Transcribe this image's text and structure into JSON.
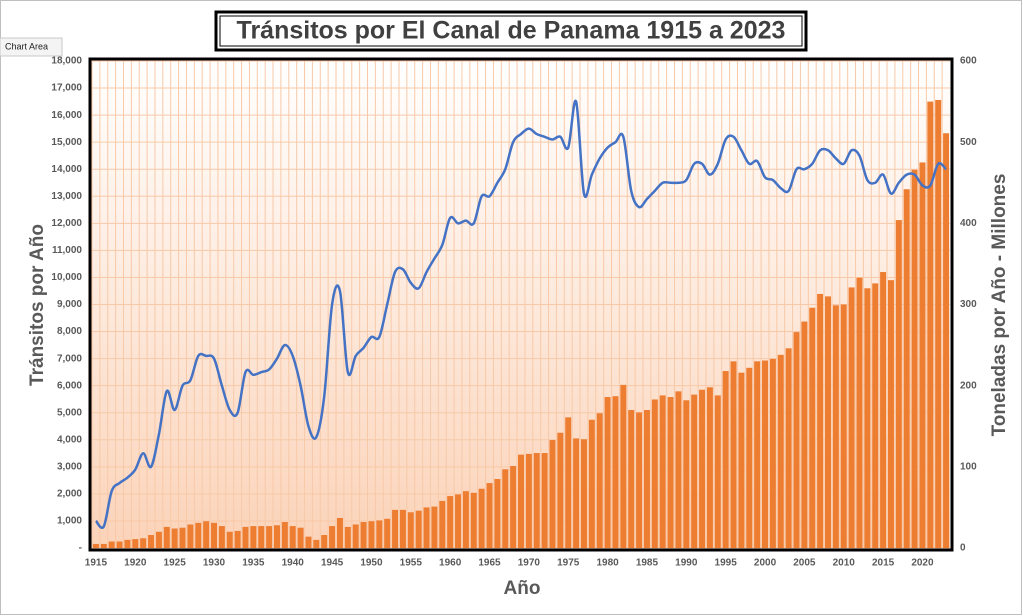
{
  "tooltip": "Chart Area",
  "chart_data": {
    "type": "combo",
    "title": "Tránsitos por El Canal de Panama 1915 a 2023",
    "x_label": "Año",
    "y_label": "Tránsitos por Año",
    "y2_label": "Toneladas por Año  - Millones",
    "x": [
      1915,
      1916,
      1917,
      1918,
      1919,
      1920,
      1921,
      1922,
      1923,
      1924,
      1925,
      1926,
      1927,
      1928,
      1929,
      1930,
      1931,
      1932,
      1933,
      1934,
      1935,
      1936,
      1937,
      1938,
      1939,
      1940,
      1941,
      1942,
      1943,
      1944,
      1945,
      1946,
      1947,
      1948,
      1949,
      1950,
      1951,
      1952,
      1953,
      1954,
      1955,
      1956,
      1957,
      1958,
      1959,
      1960,
      1961,
      1962,
      1963,
      1964,
      1965,
      1966,
      1967,
      1968,
      1969,
      1970,
      1971,
      1972,
      1973,
      1974,
      1975,
      1976,
      1977,
      1978,
      1979,
      1980,
      1981,
      1982,
      1983,
      1984,
      1985,
      1986,
      1987,
      1988,
      1989,
      1990,
      1991,
      1992,
      1993,
      1994,
      1995,
      1996,
      1997,
      1998,
      1999,
      2000,
      2001,
      2002,
      2003,
      2004,
      2005,
      2006,
      2007,
      2008,
      2009,
      2010,
      2011,
      2012,
      2013,
      2014,
      2015,
      2016,
      2017,
      2018,
      2019,
      2020,
      2021,
      2022,
      2023
    ],
    "xticks": [
      1915,
      1920,
      1925,
      1930,
      1935,
      1940,
      1945,
      1950,
      1955,
      1960,
      1965,
      1970,
      1975,
      1980,
      1985,
      1990,
      1995,
      2000,
      2005,
      2010,
      2015,
      2020
    ],
    "ylim": [
      0,
      18000
    ],
    "yticks": [
      {
        "value": 0,
        "label": "-"
      },
      {
        "value": 1000,
        "label": "1,000"
      },
      {
        "value": 2000,
        "label": "2,000"
      },
      {
        "value": 3000,
        "label": "3,000"
      },
      {
        "value": 4000,
        "label": "4,000"
      },
      {
        "value": 5000,
        "label": "5,000"
      },
      {
        "value": 6000,
        "label": "6,000"
      },
      {
        "value": 7000,
        "label": "7,000"
      },
      {
        "value": 8000,
        "label": "8,000"
      },
      {
        "value": 9000,
        "label": "9,000"
      },
      {
        "value": 10000,
        "label": "10,000"
      },
      {
        "value": 11000,
        "label": "11,000"
      },
      {
        "value": 12000,
        "label": "12,000"
      },
      {
        "value": 13000,
        "label": "13,000"
      },
      {
        "value": 14000,
        "label": "14,000"
      },
      {
        "value": 15000,
        "label": "15,000"
      },
      {
        "value": 16000,
        "label": "16,000"
      },
      {
        "value": 17000,
        "label": "17,000"
      },
      {
        "value": 18000,
        "label": "18,000"
      }
    ],
    "y2lim": [
      0,
      600
    ],
    "y2ticks": [
      0,
      100,
      200,
      300,
      400,
      500,
      600
    ],
    "grid": true,
    "series": [
      {
        "type": "bar",
        "axis": "y2",
        "color": "#ed7d31",
        "values": [
          5,
          5,
          8,
          8,
          10,
          11,
          12,
          16,
          20,
          26,
          24,
          25,
          29,
          31,
          33,
          31,
          27,
          20,
          21,
          26,
          27,
          27,
          27,
          28,
          32,
          27,
          25,
          14,
          10,
          16,
          27,
          37,
          26,
          29,
          32,
          33,
          34,
          36,
          47,
          47,
          44,
          46,
          50,
          51,
          58,
          64,
          66,
          70,
          68,
          73,
          80,
          85,
          97,
          101,
          115,
          116,
          117,
          117,
          133,
          142,
          161,
          135,
          134,
          158,
          166,
          186,
          187,
          201,
          170,
          167,
          170,
          183,
          188,
          186,
          193,
          182,
          189,
          195,
          198,
          188,
          218,
          230,
          216,
          222,
          230,
          231,
          233,
          238,
          246,
          266,
          279,
          296,
          313,
          310,
          299,
          300,
          321,
          333,
          320,
          326,
          340,
          330,
          404,
          442,
          466,
          475,
          550,
          552,
          511
        ]
      },
      {
        "type": "line",
        "color": "#4472c4",
        "values": [
          1000,
          800,
          2100,
          2400,
          2600,
          2900,
          3500,
          3000,
          4200,
          5800,
          5100,
          6000,
          6200,
          7100,
          7100,
          7000,
          6000,
          5100,
          5000,
          6500,
          6400,
          6500,
          6600,
          7000,
          7500,
          7100,
          6000,
          4500,
          4100,
          5600,
          9000,
          9500,
          6500,
          7100,
          7400,
          7800,
          7800,
          9000,
          10200,
          10300,
          9800,
          9600,
          10200,
          10700,
          11200,
          12200,
          12000,
          12100,
          12000,
          13000,
          13000,
          13500,
          14000,
          15000,
          15300,
          15500,
          15300,
          15200,
          15100,
          15200,
          14800,
          16500,
          13100,
          13800,
          14400,
          14800,
          15000,
          15200,
          13200,
          12600,
          12900,
          13200,
          13500,
          13500,
          13500,
          13600,
          14200,
          14200,
          13800,
          14200,
          15100,
          15200,
          14700,
          14200,
          14300,
          13700,
          13600,
          13300,
          13200,
          14000,
          14000,
          14200,
          14700,
          14700,
          14400,
          14200,
          14700,
          14500,
          13600,
          13500,
          13800,
          13100,
          13500,
          13800,
          13800,
          13400,
          13400,
          14200,
          14000
        ]
      }
    ]
  }
}
